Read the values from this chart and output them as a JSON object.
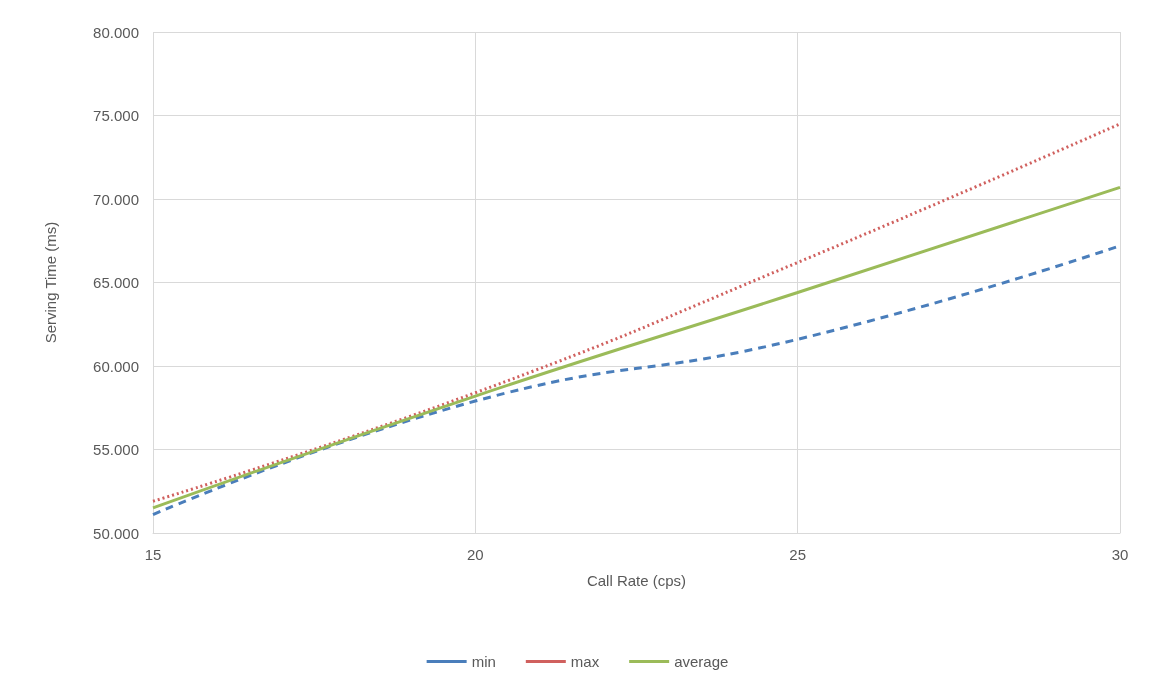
{
  "chart_data": {
    "type": "line",
    "xlabel": "Call Rate (cps)",
    "ylabel": "Serving Time (ms)",
    "x": [
      15,
      20,
      25,
      30
    ],
    "series": [
      {
        "name": "min",
        "color": "#4a7ebb",
        "line_style": "dashed",
        "values": [
          51.1,
          57.9,
          61.6,
          67.2
        ]
      },
      {
        "name": "max",
        "color": "#d0605e",
        "line_style": "dotted",
        "values": [
          51.9,
          58.4,
          66.2,
          74.5
        ]
      },
      {
        "name": "average",
        "color": "#9bbb59",
        "line_style": "solid",
        "values": [
          51.5,
          58.2,
          64.4,
          70.7
        ]
      }
    ],
    "xlim": [
      15,
      30
    ],
    "xticks": [
      15,
      20,
      25,
      30
    ],
    "ylim": [
      50,
      80
    ],
    "yticks": [
      {
        "value": 50,
        "label": "50.000"
      },
      {
        "value": 55,
        "label": "55.000"
      },
      {
        "value": 60,
        "label": "60.000"
      },
      {
        "value": 65,
        "label": "65.000"
      },
      {
        "value": 70,
        "label": "70.000"
      },
      {
        "value": 75,
        "label": "75.000"
      },
      {
        "value": 80,
        "label": "80.000"
      }
    ],
    "grid": true,
    "legend": "bottom",
    "marker": "none"
  }
}
